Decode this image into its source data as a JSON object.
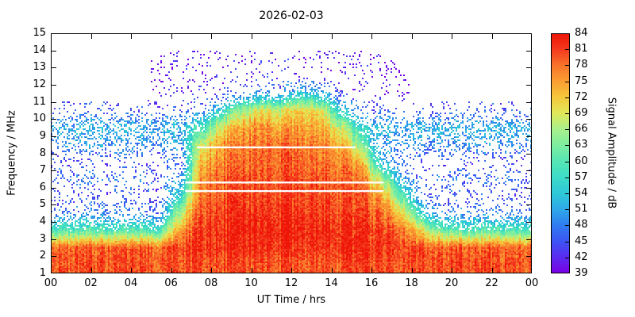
{
  "chart_data": {
    "type": "heatmap",
    "title": "2026-02-03",
    "xlabel": "UT Time / hrs",
    "ylabel": "Frequency / MHz",
    "xlim": [
      0,
      24
    ],
    "ylim": [
      1,
      15
    ],
    "grid": false,
    "x_tick_values": [
      0,
      2,
      4,
      6,
      8,
      10,
      12,
      14,
      16,
      18,
      20,
      22,
      24
    ],
    "x_tick_labels": [
      "00",
      "02",
      "04",
      "06",
      "08",
      "10",
      "12",
      "14",
      "16",
      "18",
      "20",
      "22",
      "00"
    ],
    "y_tick_values": [
      1,
      2,
      3,
      4,
      5,
      6,
      7,
      8,
      9,
      10,
      11,
      12,
      13,
      14,
      15
    ],
    "colorbar": {
      "label": "Signal Amplitude / dB",
      "min": 39,
      "max": 84,
      "tick_values": [
        39,
        42,
        45,
        48,
        51,
        54,
        57,
        60,
        63,
        66,
        69,
        72,
        75,
        78,
        81,
        84
      ],
      "colors": [
        "#7a00e6",
        "#5a2bf0",
        "#3c55f5",
        "#2f7df0",
        "#2fa8e8",
        "#2ec8d8",
        "#3cdcc8",
        "#55e6b4",
        "#7deea0",
        "#a8f08c",
        "#e0e85a",
        "#f5c83c",
        "#fa9f32",
        "#f9742a",
        "#f43b1e",
        "#ee1408"
      ]
    },
    "no_data_value": 0,
    "time_bin_centers_hrs": [
      0.5,
      1.5,
      2.5,
      3.5,
      4.5,
      5.5,
      6.5,
      7.5,
      8.5,
      9.5,
      10.5,
      11.5,
      12.5,
      13.5,
      14.5,
      15.5,
      16.5,
      17.5,
      18.5,
      19.5,
      20.5,
      21.5,
      22.5,
      23.5
    ],
    "freq_bin_centers_mhz": [
      1.5,
      2.5,
      3.5,
      4.5,
      5.5,
      6.5,
      7.5,
      8.5,
      9.5,
      10.5,
      11.5,
      12.5,
      13.5,
      14.5
    ],
    "amplitude_db_grid": [
      [
        80,
        80,
        80,
        80,
        80,
        80,
        80,
        80,
        80,
        80,
        80,
        80,
        80,
        80,
        80,
        80,
        80,
        80,
        80,
        80,
        80,
        80,
        80,
        80
      ],
      [
        79,
        79,
        79,
        79,
        79,
        79,
        81,
        82,
        82,
        82,
        82,
        82,
        82,
        82,
        82,
        82,
        81,
        81,
        80,
        79,
        79,
        79,
        79,
        79
      ],
      [
        60,
        60,
        60,
        60,
        60,
        60,
        76,
        81,
        82,
        83,
        83,
        83,
        83,
        83,
        82,
        82,
        80,
        79,
        70,
        62,
        60,
        60,
        60,
        60
      ],
      [
        48,
        48,
        48,
        48,
        48,
        48,
        68,
        80,
        81,
        82,
        82,
        82,
        82,
        82,
        81,
        80,
        78,
        72,
        55,
        48,
        48,
        48,
        48,
        48
      ],
      [
        44,
        44,
        44,
        44,
        44,
        44,
        58,
        78,
        80,
        81,
        81,
        81,
        81,
        81,
        80,
        79,
        74,
        62,
        47,
        44,
        44,
        44,
        44,
        44
      ],
      [
        47,
        47,
        47,
        47,
        47,
        47,
        50,
        76,
        79,
        80,
        80,
        80,
        80,
        80,
        79,
        77,
        66,
        52,
        46,
        47,
        47,
        47,
        47,
        47
      ],
      [
        44,
        44,
        44,
        44,
        44,
        44,
        46,
        73,
        77,
        78,
        79,
        79,
        79,
        78,
        77,
        73,
        52,
        47,
        44,
        44,
        44,
        44,
        44,
        44
      ],
      [
        49,
        49,
        49,
        49,
        49,
        49,
        50,
        68,
        75,
        77,
        78,
        78,
        78,
        77,
        74,
        62,
        48,
        49,
        49,
        49,
        49,
        49,
        49,
        49
      ],
      [
        52,
        52,
        52,
        52,
        52,
        52,
        52,
        58,
        70,
        74,
        76,
        74,
        75,
        74,
        68,
        55,
        52,
        52,
        52,
        52,
        52,
        52,
        52,
        52
      ],
      [
        45,
        45,
        45,
        45,
        45,
        45,
        46,
        48,
        56,
        65,
        70,
        68,
        72,
        70,
        55,
        46,
        45,
        44,
        44,
        45,
        45,
        45,
        45,
        45
      ],
      [
        0,
        0,
        0,
        0,
        0,
        40,
        41,
        42,
        44,
        46,
        50,
        48,
        55,
        52,
        45,
        42,
        41,
        40,
        0,
        0,
        0,
        0,
        0,
        0
      ],
      [
        0,
        0,
        0,
        0,
        0,
        40,
        40,
        41,
        41,
        42,
        43,
        43,
        43,
        43,
        41,
        41,
        40,
        40,
        0,
        0,
        0,
        0,
        0,
        0
      ],
      [
        0,
        0,
        0,
        0,
        0,
        40,
        40,
        40,
        40,
        41,
        41,
        41,
        41,
        41,
        40,
        40,
        40,
        0,
        0,
        0,
        0,
        0,
        0,
        0
      ],
      [
        0,
        0,
        0,
        0,
        0,
        0,
        0,
        0,
        0,
        0,
        0,
        0,
        0,
        0,
        0,
        0,
        0,
        0,
        0,
        0,
        0,
        0,
        0,
        0
      ]
    ],
    "mask_lines": [
      {
        "freq": 8.35,
        "t0": 7.3,
        "t1": 15.2
      },
      {
        "freq": 6.3,
        "t0": 6.7,
        "t1": 16.6
      },
      {
        "freq": 5.8,
        "t0": 6.7,
        "t1": 16.6
      }
    ]
  }
}
